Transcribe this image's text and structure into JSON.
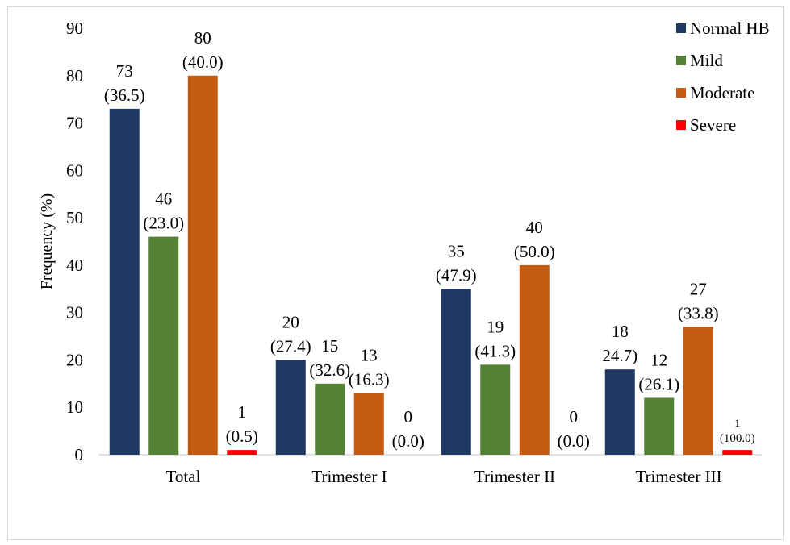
{
  "chart_data": {
    "type": "bar",
    "title": "",
    "xlabel": "",
    "ylabel": "Frequency (%)",
    "ylim": [
      0,
      90
    ],
    "yticks": [
      0,
      10,
      20,
      30,
      40,
      50,
      60,
      70,
      80,
      90
    ],
    "grid": false,
    "legend_position": "top-right",
    "categories": [
      "Total",
      "Trimester I",
      "Trimester II",
      "Trimester III"
    ],
    "series": [
      {
        "name": "Normal HB",
        "color": "#203864",
        "values": [
          73,
          20,
          35,
          18
        ],
        "labels": [
          [
            "73",
            "(36.5)"
          ],
          [
            "20",
            "(27.4)"
          ],
          [
            "35",
            "(47.9)"
          ],
          [
            "18",
            "24.7)"
          ]
        ]
      },
      {
        "name": "Mild",
        "color": "#548235",
        "values": [
          46,
          15,
          19,
          12
        ],
        "labels": [
          [
            "46",
            "(23.0)"
          ],
          [
            "15",
            "(32.6)"
          ],
          [
            "19",
            "(41.3)"
          ],
          [
            "12",
            "(26.1)"
          ]
        ]
      },
      {
        "name": "Moderate",
        "color": "#C55A11",
        "values": [
          80,
          13,
          40,
          27
        ],
        "labels": [
          [
            "80",
            "(40.0)"
          ],
          [
            "13",
            "(16.3)"
          ],
          [
            "40",
            "(50.0)"
          ],
          [
            "27",
            "(33.8)"
          ]
        ]
      },
      {
        "name": "Severe",
        "color": "#FF0000",
        "values": [
          1,
          0,
          0,
          1
        ],
        "labels": [
          [
            "1",
            "(0.5)"
          ],
          [
            "0",
            "(0.0)"
          ],
          [
            "0",
            "(0.0)"
          ],
          [
            "1",
            "(100.0)"
          ]
        ]
      }
    ]
  }
}
